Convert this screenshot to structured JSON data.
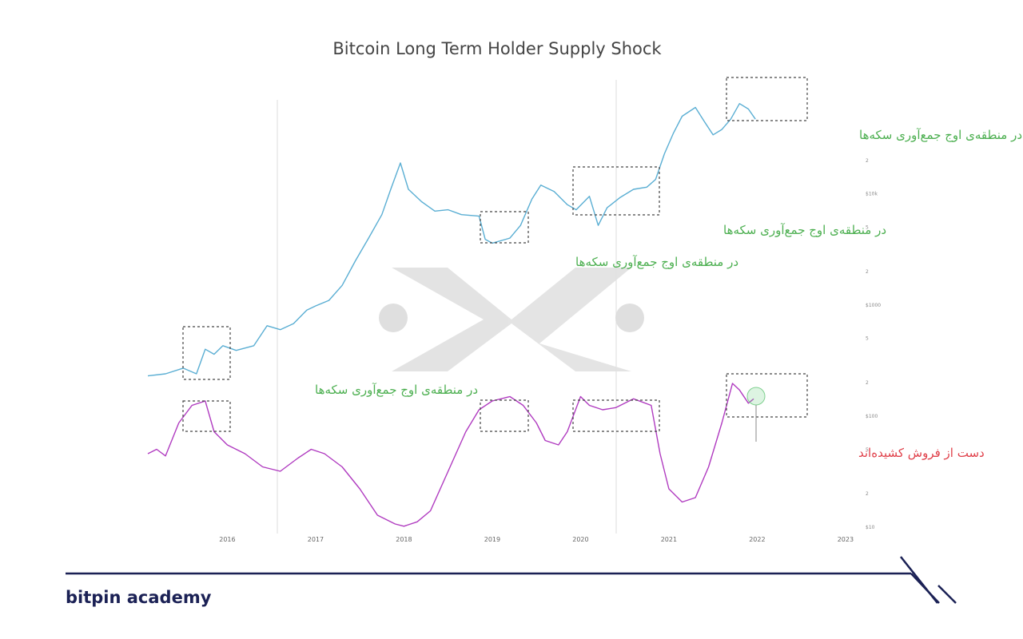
{
  "chart_data": {
    "type": "line",
    "title": "Bitcoin Long Term Holder Supply Shock",
    "x": {
      "ticks": [
        "2016",
        "2017",
        "2018",
        "2019",
        "2020",
        "2021",
        "2022",
        "2023"
      ],
      "range": [
        2015.1,
        2023.2
      ]
    },
    "y_price": {
      "scale": "log",
      "ticks": [
        "$10",
        "2",
        "5",
        "$100",
        "2",
        "5",
        "$1000",
        "2",
        "5",
        "$10k",
        "2"
      ],
      "range": [
        10,
        90000
      ]
    },
    "series": [
      {
        "color": "#5aaed3",
        "points": [
          [
            2015.1,
            230
          ],
          [
            2015.3,
            240
          ],
          [
            2015.5,
            270
          ],
          [
            2015.65,
            240
          ],
          [
            2015.75,
            400
          ],
          [
            2015.85,
            360
          ],
          [
            2015.95,
            430
          ],
          [
            2016.1,
            390
          ],
          [
            2016.3,
            430
          ],
          [
            2016.45,
            650
          ],
          [
            2016.6,
            600
          ],
          [
            2016.75,
            680
          ],
          [
            2016.9,
            900
          ],
          [
            2017.0,
            980
          ],
          [
            2017.15,
            1100
          ],
          [
            2017.3,
            1500
          ],
          [
            2017.45,
            2500
          ],
          [
            2017.6,
            4000
          ],
          [
            2017.75,
            6500
          ],
          [
            2017.85,
            11000
          ],
          [
            2017.96,
            19000
          ],
          [
            2018.05,
            11000
          ],
          [
            2018.2,
            8500
          ],
          [
            2018.35,
            7000
          ],
          [
            2018.5,
            7200
          ],
          [
            2018.65,
            6500
          ],
          [
            2018.85,
            6300
          ],
          [
            2018.92,
            3900
          ],
          [
            2019.0,
            3600
          ],
          [
            2019.2,
            4000
          ],
          [
            2019.32,
            5200
          ],
          [
            2019.45,
            9000
          ],
          [
            2019.55,
            12000
          ],
          [
            2019.7,
            10500
          ],
          [
            2019.85,
            8000
          ],
          [
            2019.95,
            7200
          ],
          [
            2020.1,
            9500
          ],
          [
            2020.2,
            5200
          ],
          [
            2020.3,
            7500
          ],
          [
            2020.45,
            9300
          ],
          [
            2020.6,
            11000
          ],
          [
            2020.75,
            11500
          ],
          [
            2020.85,
            13500
          ],
          [
            2020.95,
            23000
          ],
          [
            2021.05,
            35000
          ],
          [
            2021.15,
            50000
          ],
          [
            2021.3,
            60000
          ],
          [
            2021.4,
            45000
          ],
          [
            2021.5,
            34000
          ],
          [
            2021.6,
            38000
          ],
          [
            2021.7,
            47000
          ],
          [
            2021.8,
            65000
          ],
          [
            2021.9,
            58000
          ],
          [
            2021.98,
            47000
          ]
        ]
      },
      {
        "color": "#b03bc0",
        "points": [
          [
            2015.1,
            0.48
          ],
          [
            2015.2,
            0.5
          ],
          [
            2015.3,
            0.47
          ],
          [
            2015.45,
            0.62
          ],
          [
            2015.6,
            0.7
          ],
          [
            2015.75,
            0.72
          ],
          [
            2015.85,
            0.58
          ],
          [
            2016.0,
            0.52
          ],
          [
            2016.2,
            0.48
          ],
          [
            2016.4,
            0.42
          ],
          [
            2016.6,
            0.4
          ],
          [
            2016.8,
            0.46
          ],
          [
            2016.95,
            0.5
          ],
          [
            2017.1,
            0.48
          ],
          [
            2017.3,
            0.42
          ],
          [
            2017.5,
            0.32
          ],
          [
            2017.7,
            0.2
          ],
          [
            2017.9,
            0.16
          ],
          [
            2018.0,
            0.15
          ],
          [
            2018.15,
            0.17
          ],
          [
            2018.3,
            0.22
          ],
          [
            2018.5,
            0.4
          ],
          [
            2018.7,
            0.58
          ],
          [
            2018.85,
            0.68
          ],
          [
            2019.0,
            0.72
          ],
          [
            2019.2,
            0.74
          ],
          [
            2019.35,
            0.7
          ],
          [
            2019.5,
            0.62
          ],
          [
            2019.6,
            0.54
          ],
          [
            2019.75,
            0.52
          ],
          [
            2019.85,
            0.58
          ],
          [
            2020.0,
            0.74
          ],
          [
            2020.1,
            0.7
          ],
          [
            2020.25,
            0.68
          ],
          [
            2020.4,
            0.69
          ],
          [
            2020.6,
            0.73
          ],
          [
            2020.8,
            0.7
          ],
          [
            2020.9,
            0.48
          ],
          [
            2021.0,
            0.32
          ],
          [
            2021.15,
            0.26
          ],
          [
            2021.3,
            0.28
          ],
          [
            2021.45,
            0.42
          ],
          [
            2021.6,
            0.62
          ],
          [
            2021.72,
            0.8
          ],
          [
            2021.8,
            0.77
          ],
          [
            2021.9,
            0.71
          ],
          [
            2021.96,
            0.73
          ]
        ]
      }
    ],
    "annotations": {
      "accumulation_label": "در منطقه‌ی اوج جمع‌آوری سکه‌ها",
      "distribution_label": "دست از فروش کشیده‌اند"
    }
  },
  "brand": {
    "name": "bitpin academy",
    "color": "#1b2155"
  }
}
